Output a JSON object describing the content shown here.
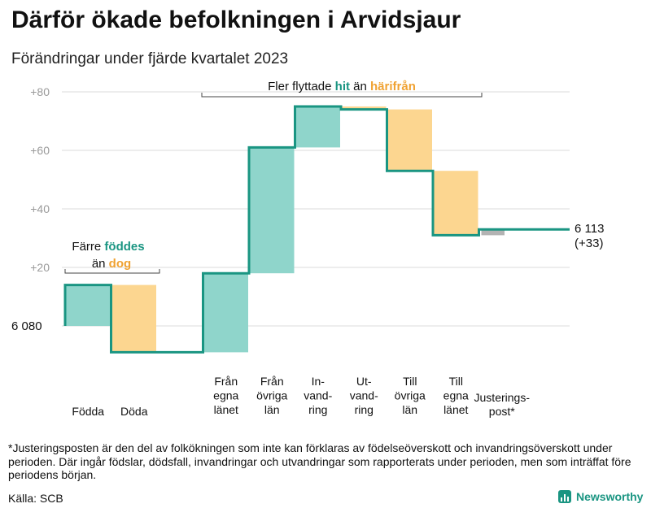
{
  "title": "Därför ökade befolkningen i Arvidsjaur",
  "subtitle": "Förändringar under fjärde kvartalet 2023",
  "footnote": "*Justeringsposten är den del av folkökningen som inte kan förklaras av födelseöverskott och invandringsöverskott under perioden. Där ingår födslar, dödsfall, invandringar och utvandringar som rapporterats under perioden, men som inträffat före periodens början.",
  "source": "Källa: SCB",
  "brand": "Newsworthy",
  "colors": {
    "teal": "#1a9582",
    "teal_bar": "#8fd5cb",
    "orange": "#f0a232",
    "orange_bar": "#fcd690",
    "grid": "#e2e2e2",
    "adjust": "#b3b3b3",
    "brand": "#1a9582"
  },
  "chart_data": {
    "type": "waterfall",
    "title": "Därför ökade befolkningen i Arvidsjaur",
    "subtitle": "Förändringar under fjärde kvartalet 2023",
    "start_value": 6080,
    "start_label": "6  080",
    "end_value": 6113,
    "end_label": "6 113",
    "end_change_label": "(+33)",
    "yaxis": {
      "ticks": [
        "+80",
        "+60",
        "+40",
        "+20"
      ],
      "tick_values": [
        80,
        60,
        40,
        20
      ],
      "range": [
        -10,
        85
      ]
    },
    "steps": [
      {
        "label": "Födda",
        "label_lines": [
          "Födda"
        ],
        "change": 14,
        "kind": "in"
      },
      {
        "label": "Döda",
        "label_lines": [
          "Döda"
        ],
        "change": -23,
        "kind": "out"
      },
      {
        "label": "",
        "label_lines": [],
        "change": 0,
        "kind": "gap"
      },
      {
        "label": "Från egna länet",
        "label_lines": [
          "Från",
          "egna",
          "länet"
        ],
        "change": 27,
        "kind": "in"
      },
      {
        "label": "Från övriga län",
        "label_lines": [
          "Från",
          "övriga",
          "län"
        ],
        "change": 43,
        "kind": "in"
      },
      {
        "label": "Invandring",
        "label_lines": [
          "In-",
          "vand-",
          "ring"
        ],
        "change": 14,
        "kind": "in"
      },
      {
        "label": "Utvandring",
        "label_lines": [
          "Ut-",
          "vand-",
          "ring"
        ],
        "change": -1,
        "kind": "out"
      },
      {
        "label": "Till övriga län",
        "label_lines": [
          "Till",
          "övriga",
          "län"
        ],
        "change": -21,
        "kind": "out"
      },
      {
        "label": "Till egna länet",
        "label_lines": [
          "Till",
          "egna",
          "länet"
        ],
        "change": -22,
        "kind": "out"
      },
      {
        "label": "Justeringspost*",
        "label_lines": [
          "Justerings-",
          "post*"
        ],
        "change": 2,
        "kind": "adjust"
      }
    ],
    "annotations": [
      {
        "text_parts": [
          "Färre ",
          "föddes"
        ],
        "line2_parts": [
          "än ",
          "dog"
        ]
      },
      {
        "text_parts": [
          "Fler flyttade ",
          "hit",
          "  än ",
          "härifrån"
        ]
      }
    ]
  }
}
